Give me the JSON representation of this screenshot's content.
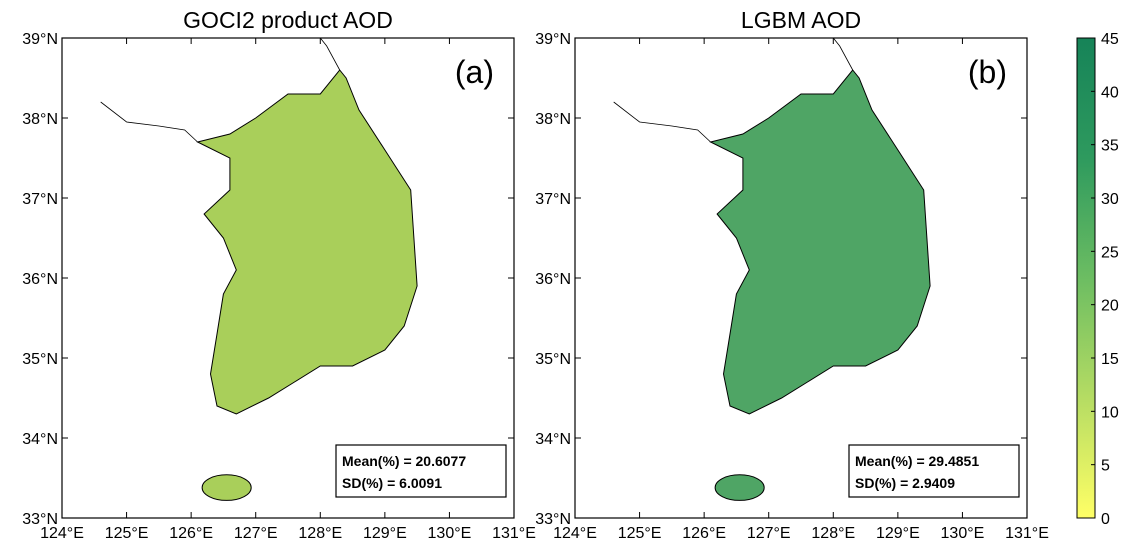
{
  "panels": [
    {
      "title": "GOCI2 product AOD",
      "label": "(a)",
      "stats": [
        "Mean(%) = 20.6077",
        "SD(%) = 6.0091"
      ],
      "fill": "#a9cf5a"
    },
    {
      "title": "LGBM AOD",
      "label": "(b)",
      "stats": [
        "Mean(%) = 29.4851",
        "SD(%) = 2.9409"
      ],
      "fill": "#4fa565"
    }
  ],
  "lat_ticks": [
    {
      "value": 33,
      "label": "33°N"
    },
    {
      "value": 34,
      "label": "34°N"
    },
    {
      "value": 35,
      "label": "35°N"
    },
    {
      "value": 36,
      "label": "36°N"
    },
    {
      "value": 37,
      "label": "37°N"
    },
    {
      "value": 38,
      "label": "38°N"
    },
    {
      "value": 39,
      "label": "39°N"
    }
  ],
  "lon_ticks": [
    {
      "value": 124,
      "label": "124°E"
    },
    {
      "value": 125,
      "label": "125°E"
    },
    {
      "value": 126,
      "label": "126°E"
    },
    {
      "value": 127,
      "label": "127°E"
    },
    {
      "value": 128,
      "label": "128°E"
    },
    {
      "value": 129,
      "label": "129°E"
    },
    {
      "value": 130,
      "label": "130°E"
    },
    {
      "value": 131,
      "label": "131°E"
    }
  ],
  "colorbar": {
    "lim": [
      0,
      45
    ],
    "ticks": [
      0,
      5,
      10,
      15,
      20,
      25,
      30,
      35,
      40,
      45
    ],
    "colors": [
      "#ffff66",
      "#b5dc63",
      "#6cbd62",
      "#2e9a5e",
      "#168358"
    ]
  }
}
